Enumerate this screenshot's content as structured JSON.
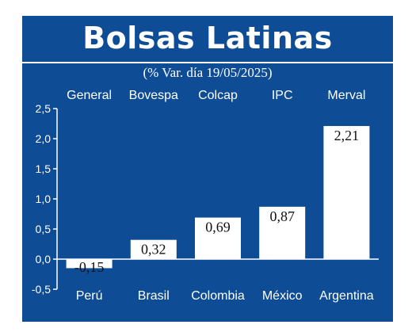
{
  "header": {
    "title": "Bolsas Latinas",
    "subtitle": "(% Var. día 19/05/2025)"
  },
  "colors": {
    "background": "#0e4d96",
    "bar": "#ffffff",
    "text": "#ffffff",
    "gridline": "#ffffff"
  },
  "chart_data": {
    "type": "bar",
    "title": "Bolsas Latinas",
    "subtitle": "(% Var. día 19/05/2025)",
    "indices": [
      "General",
      "Bovespa",
      "Colcap",
      "IPC",
      "Merval"
    ],
    "categories": [
      "Perú",
      "Brasil",
      "Colombia",
      "México",
      "Argentina"
    ],
    "values": [
      -0.15,
      0.32,
      0.69,
      0.87,
      2.21
    ],
    "value_labels": [
      "-0,15",
      "0,32",
      "0,69",
      "0,87",
      "2,21"
    ],
    "yticks": [
      2.5,
      2.0,
      1.5,
      1.0,
      0.5,
      0.0,
      -0.5
    ],
    "ytick_labels": [
      "2,5",
      "2,0",
      "1,5",
      "1,0",
      "0,5",
      "0,0",
      "-0,5"
    ],
    "ylim": [
      -0.5,
      2.5
    ],
    "xlabel": "",
    "ylabel": "",
    "grid": false,
    "legend": "none"
  }
}
